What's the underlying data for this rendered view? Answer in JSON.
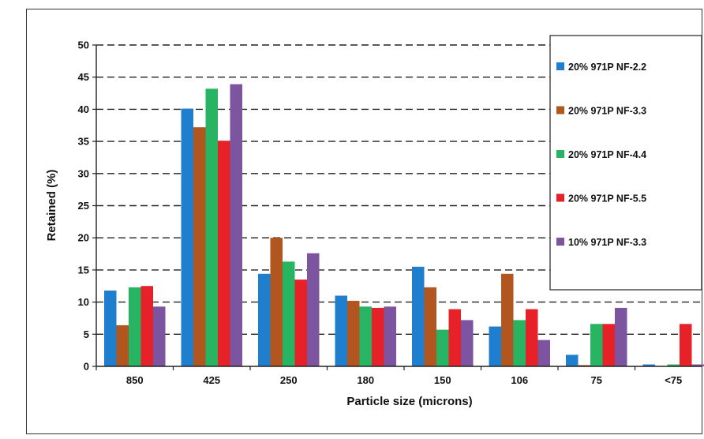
{
  "chart_data": {
    "type": "bar",
    "title": "",
    "xlabel": "Particle size (microns)",
    "ylabel": "Retained (%)",
    "ylim": [
      0,
      50
    ],
    "yticks": [
      0,
      5,
      10,
      15,
      20,
      25,
      30,
      35,
      40,
      45,
      50
    ],
    "grid": "horizontal dashed",
    "legend_position": "right",
    "categories": [
      "850",
      "425",
      "250",
      "180",
      "150",
      "106",
      "75",
      "<75"
    ],
    "series": [
      {
        "name": "20% 971P NF-2.2",
        "color": "#1f7fce",
        "values": [
          11.8,
          40.1,
          14.4,
          11.0,
          15.5,
          6.2,
          1.8,
          0.3
        ]
      },
      {
        "name": "20% 971P NF-3.3",
        "color": "#b2561f",
        "values": [
          6.4,
          37.2,
          20.0,
          10.2,
          12.3,
          14.4,
          0.2,
          0.0
        ]
      },
      {
        "name": "20% 971P NF-4.4",
        "color": "#27b463",
        "values": [
          12.3,
          43.2,
          16.3,
          9.3,
          5.7,
          7.2,
          6.6,
          0.3
        ]
      },
      {
        "name": "20% 971P NF-5.5",
        "color": "#e62127",
        "values": [
          12.5,
          35.1,
          13.5,
          9.1,
          8.9,
          8.9,
          6.6,
          6.6
        ]
      },
      {
        "name": "10% 971P NF-3.3",
        "color": "#7d54a0",
        "values": [
          9.3,
          43.9,
          17.6,
          9.3,
          7.2,
          4.1,
          9.1,
          0.3
        ]
      }
    ]
  }
}
